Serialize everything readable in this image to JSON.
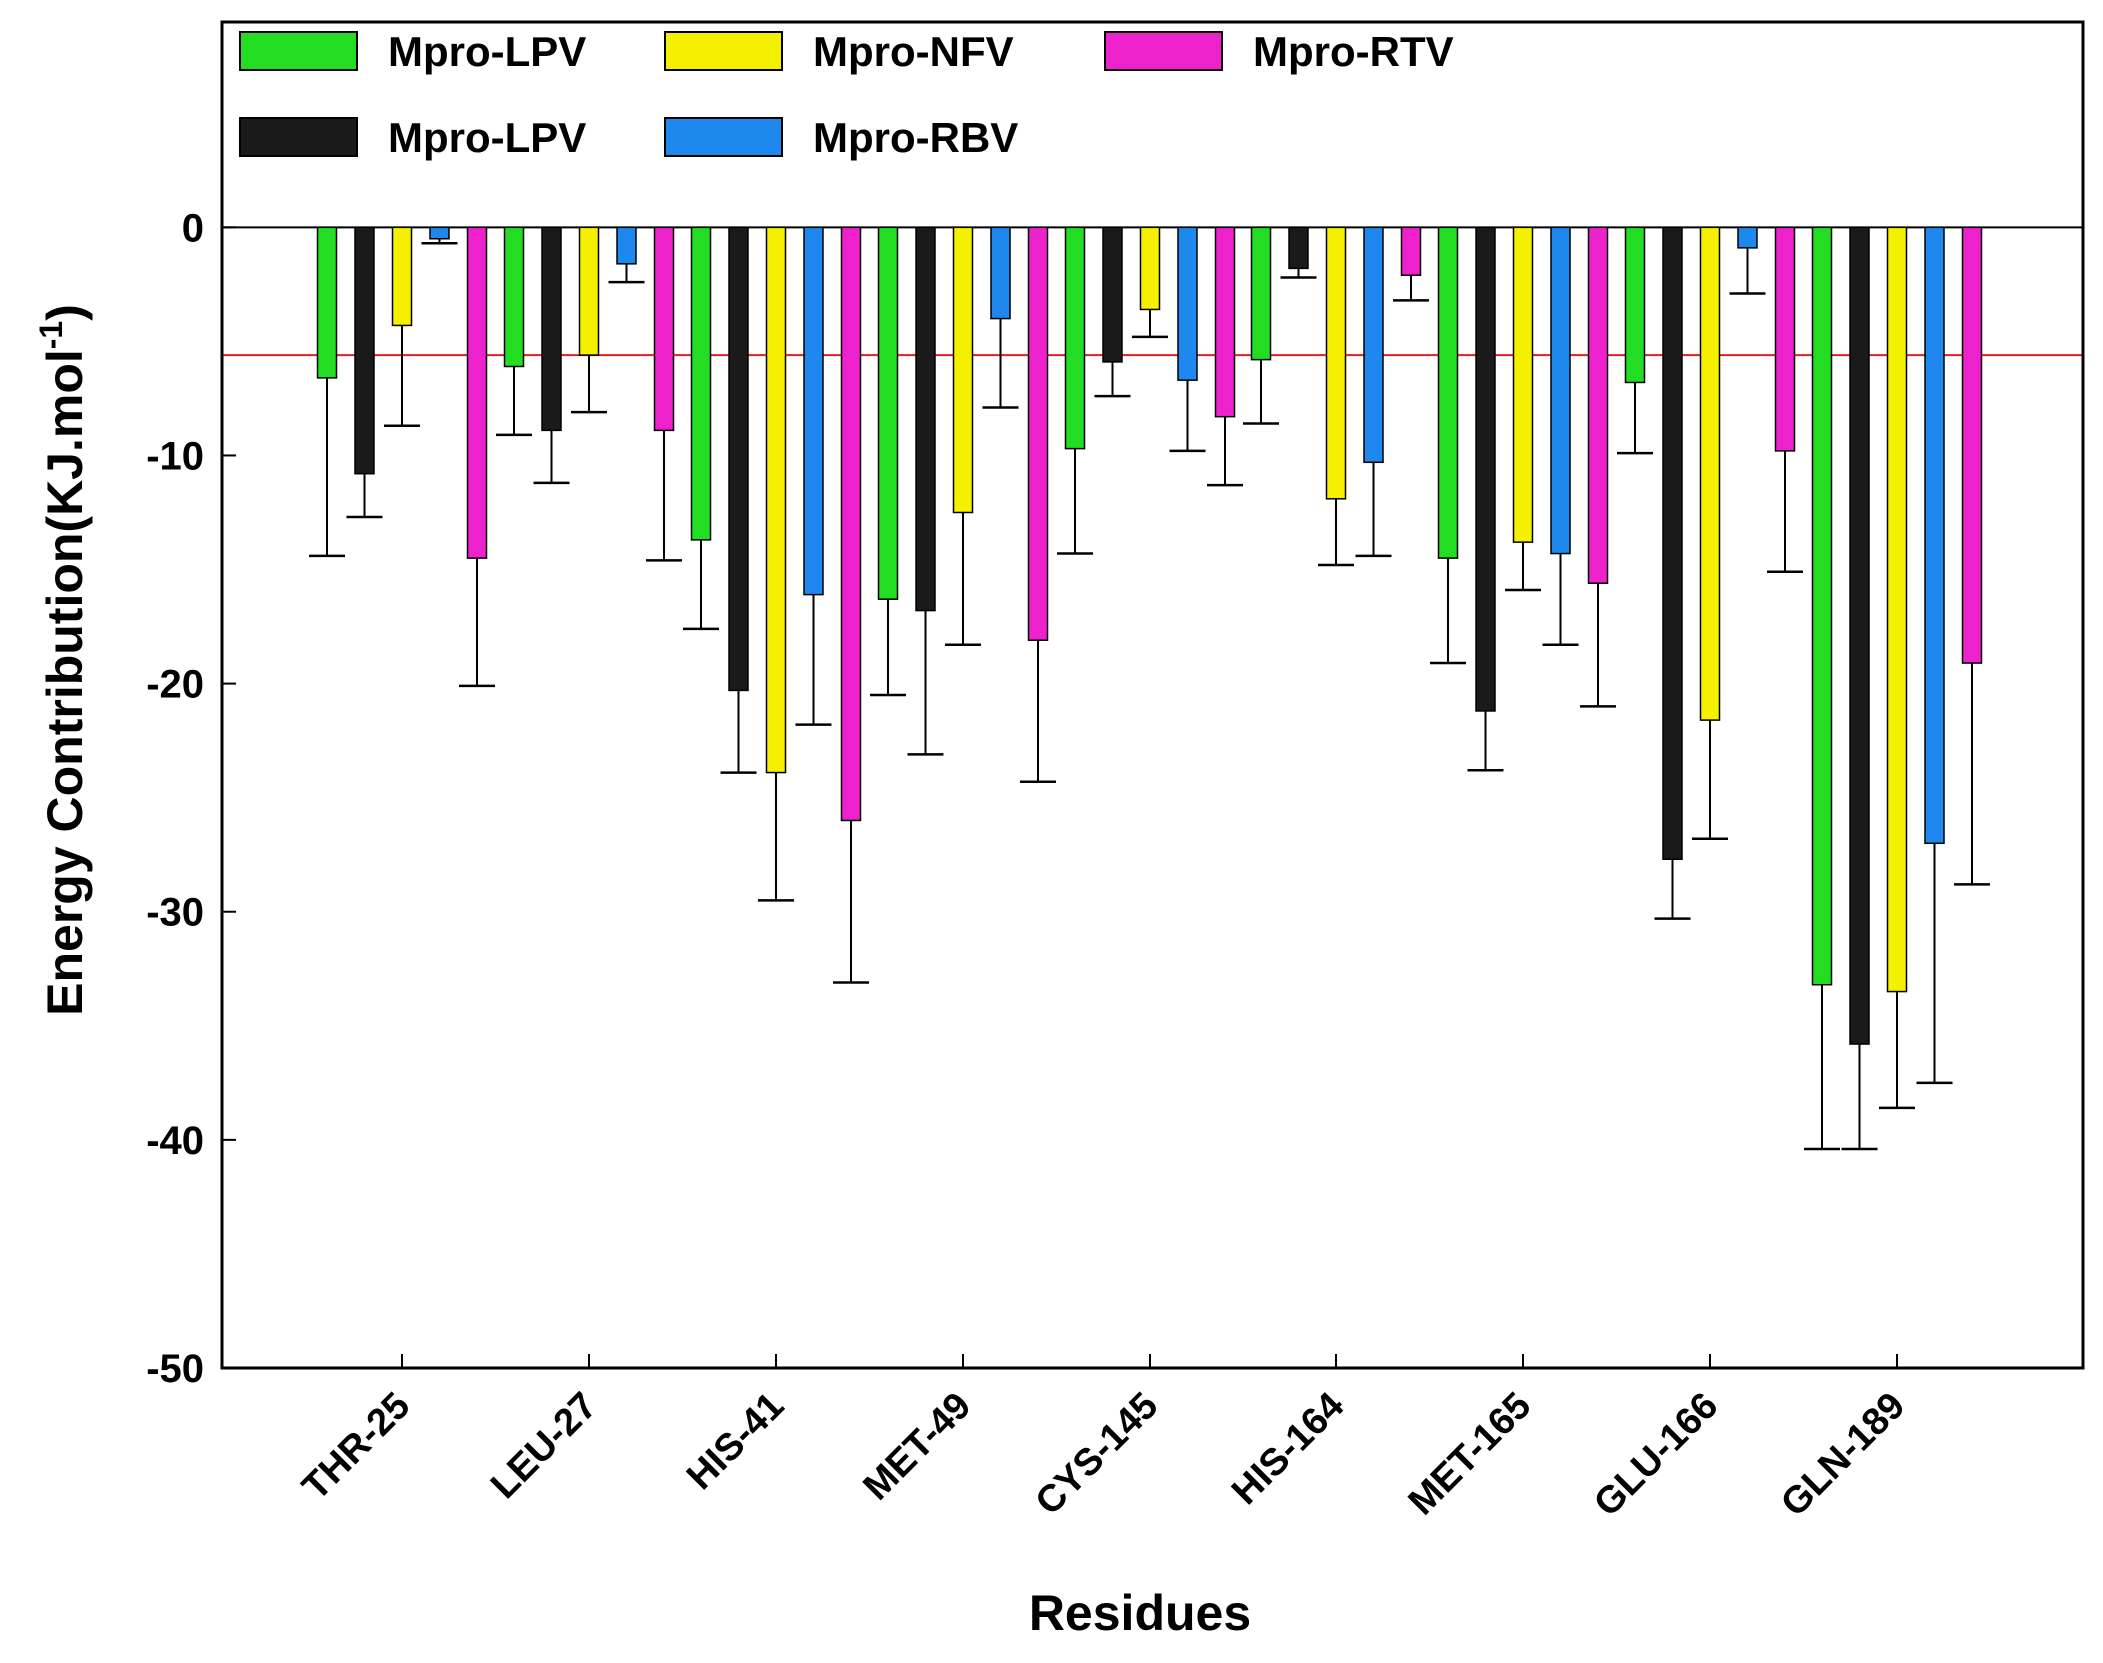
{
  "chart_data": {
    "type": "bar",
    "xlabel": "Residues",
    "ylabel": "Energy Contribution(KJ.mol",
    "ylabel_sup": "-1",
    "ylabel_close": ")",
    "ylim": [
      -50,
      9
    ],
    "yticks": [
      0,
      -10,
      -20,
      -30,
      -40,
      -50
    ],
    "grid": false,
    "legend_position": "top-left (inside plot)",
    "reference_lines": [
      {
        "y": 0,
        "color": "#000000"
      },
      {
        "y": -5.6,
        "color": "#e02020"
      }
    ],
    "categories": [
      "THR-25",
      "LEU-27",
      "HIS-41",
      "MET-49",
      "CYS-145",
      "HIS-164",
      "MET-165",
      "GLU-166",
      "GLN-189"
    ],
    "series": [
      {
        "name": "Mpro-LPV",
        "color": "#22dd22",
        "values": [
          -6.6,
          -6.1,
          -13.7,
          -16.3,
          -9.7,
          -5.8,
          -14.5,
          -6.8,
          -33.2
        ],
        "errors": [
          7.8,
          3.0,
          3.9,
          4.2,
          4.6,
          2.8,
          4.6,
          3.1,
          7.2
        ]
      },
      {
        "name": "Mpro-LPV",
        "color": "#1a1a1a",
        "values": [
          -10.8,
          -8.9,
          -20.3,
          -16.8,
          -5.9,
          -1.8,
          -21.2,
          -27.7,
          -35.8
        ],
        "errors": [
          1.9,
          2.3,
          3.6,
          6.3,
          1.5,
          0.4,
          2.6,
          2.6,
          4.6
        ]
      },
      {
        "name": "Mpro-NFV",
        "color": "#f4f000",
        "values": [
          -4.3,
          -5.6,
          -23.9,
          -12.5,
          -3.6,
          -11.9,
          -13.8,
          -21.6,
          -33.5
        ],
        "errors": [
          4.4,
          2.5,
          5.6,
          5.8,
          1.2,
          2.9,
          2.1,
          5.2,
          5.1
        ]
      },
      {
        "name": "Mpro-RBV",
        "color": "#1e88ee",
        "values": [
          -0.5,
          -1.6,
          -16.1,
          -4.0,
          -6.7,
          -10.3,
          -14.3,
          -0.9,
          -27.0
        ],
        "errors": [
          0.2,
          0.8,
          5.7,
          3.9,
          3.1,
          4.1,
          4.0,
          2.0,
          10.5
        ]
      },
      {
        "name": "Mpro-RTV",
        "color": "#ee22cc",
        "values": [
          -14.5,
          -8.9,
          -26.0,
          -18.1,
          -8.3,
          -2.1,
          -15.6,
          -9.8,
          -19.1
        ],
        "errors": [
          5.6,
          5.7,
          7.1,
          6.2,
          3.0,
          1.1,
          5.4,
          5.3,
          9.7
        ]
      }
    ],
    "legend": [
      {
        "label": "Mpro-LPV",
        "series": 0
      },
      {
        "label": "Mpro-NFV",
        "series": 2
      },
      {
        "label": "Mpro-RTV",
        "series": 4
      },
      {
        "label": "Mpro-LPV",
        "series": 1
      },
      {
        "label": "Mpro-RBV",
        "series": 3
      }
    ]
  }
}
